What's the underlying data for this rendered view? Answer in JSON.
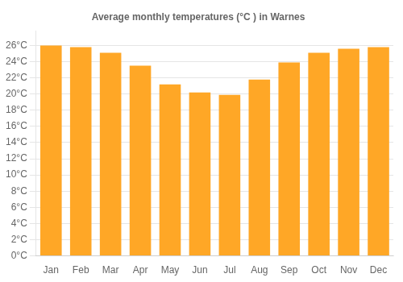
{
  "chart_data": {
    "type": "bar",
    "title": "Average monthly temperatures (°C ) in Warnes",
    "categories": [
      "Jan",
      "Feb",
      "Mar",
      "Apr",
      "May",
      "Jun",
      "Jul",
      "Aug",
      "Sep",
      "Oct",
      "Nov",
      "Dec"
    ],
    "values": [
      26.0,
      25.8,
      25.1,
      23.5,
      21.2,
      20.2,
      19.9,
      21.8,
      23.9,
      25.1,
      25.6,
      25.8
    ],
    "color": "#FFA726",
    "ylim": [
      0,
      27.8
    ],
    "yticks": [
      {
        "value": 0,
        "label": "0°C"
      },
      {
        "value": 2,
        "label": "2°C"
      },
      {
        "value": 4,
        "label": "4°C"
      },
      {
        "value": 6,
        "label": "6°C"
      },
      {
        "value": 8,
        "label": "8°C"
      },
      {
        "value": 10,
        "label": "10°C"
      },
      {
        "value": 12,
        "label": "12°C"
      },
      {
        "value": 14,
        "label": "14°C"
      },
      {
        "value": 16,
        "label": "16°C"
      },
      {
        "value": 18,
        "label": "18°C"
      },
      {
        "value": 20,
        "label": "20°C"
      },
      {
        "value": 22,
        "label": "22°C"
      },
      {
        "value": 24,
        "label": "24°C"
      },
      {
        "value": 26,
        "label": "26°C"
      }
    ],
    "grid": true
  }
}
